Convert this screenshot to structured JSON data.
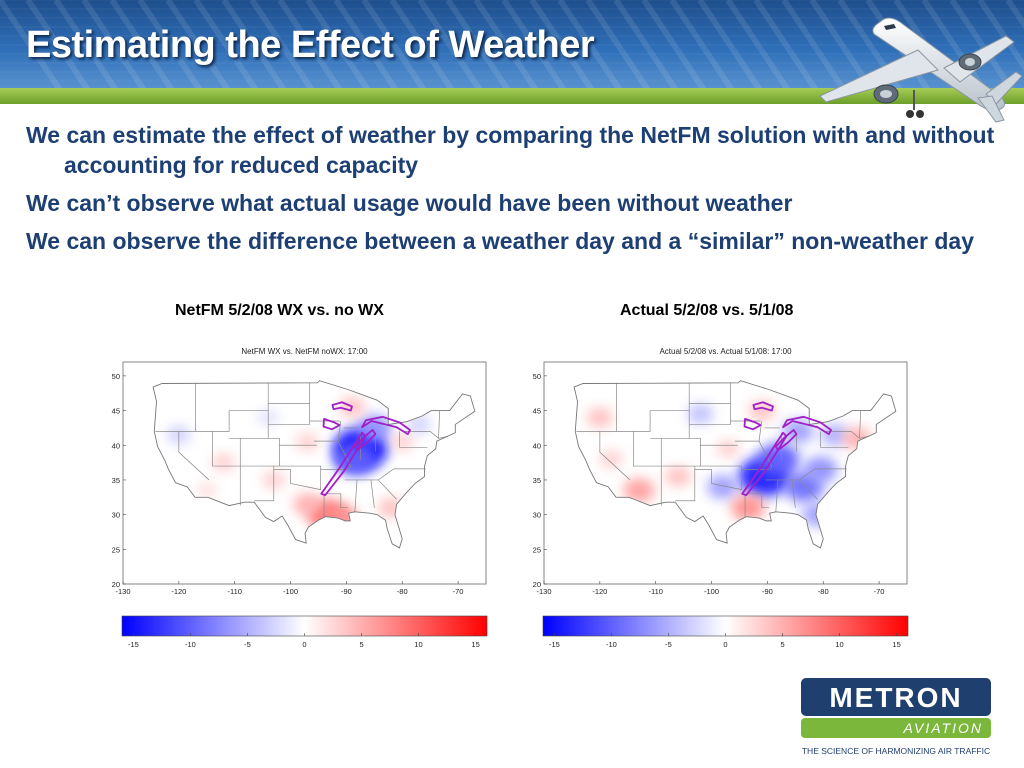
{
  "slide": {
    "title": "Estimating the Effect of Weather",
    "bullets": [
      "We can estimate the effect of weather by comparing the NetFM solution with and without accounting for reduced capacity",
      "We can’t observe what actual usage would have been without weather",
      "We can observe the difference between a weather day and a “similar” non-weather day"
    ]
  },
  "panels": [
    {
      "heading": "NetFM 5/2/08 WX vs. no WX",
      "plot_title": "NetFM WX vs. NetFM noWX: 17:00"
    },
    {
      "heading": "Actual 5/2/08 vs. 5/1/08",
      "plot_title": "Actual 5/2/08 vs. Actual 5/1/08: 17:00"
    }
  ],
  "chart_data": [
    {
      "type": "heatmap",
      "title": "NetFM WX vs. NetFM noWX: 17:00",
      "xlim": [
        -130,
        -65
      ],
      "ylim": [
        20,
        52
      ],
      "x_ticks": [
        "-130",
        "-120",
        "-110",
        "-100",
        "-90",
        "-80",
        "-70"
      ],
      "y_ticks": [
        "20",
        "25",
        "30",
        "35",
        "40",
        "45",
        "50"
      ],
      "colorbar": {
        "range": [
          -16,
          16
        ],
        "ticks": [
          "-15",
          "-10",
          "-5",
          "0",
          "5",
          "10",
          "15"
        ],
        "low_color": "#0000ff",
        "mid_color": "#ffffff",
        "high_color": "#ff0000"
      },
      "blobs": [
        {
          "lon": -87.5,
          "lat": 39.5,
          "value": -15
        },
        {
          "lon": -88.5,
          "lat": 38.0,
          "value": -10
        },
        {
          "lon": -85.0,
          "lat": 42.5,
          "value": -7
        },
        {
          "lon": -93.5,
          "lat": 30.0,
          "value": 9
        },
        {
          "lon": -91.0,
          "lat": 29.5,
          "value": 7
        },
        {
          "lon": -97.0,
          "lat": 31.5,
          "value": 5
        },
        {
          "lon": -82.0,
          "lat": 31.0,
          "value": 4
        },
        {
          "lon": -89.0,
          "lat": 45.5,
          "value": 4
        },
        {
          "lon": -80.0,
          "lat": 40.5,
          "value": 3
        },
        {
          "lon": -112.0,
          "lat": 37.5,
          "value": 3
        },
        {
          "lon": -103.0,
          "lat": 35.0,
          "value": 3
        },
        {
          "lon": -97.0,
          "lat": 40.5,
          "value": 3
        },
        {
          "lon": -120.0,
          "lat": 41.5,
          "value": -3
        },
        {
          "lon": -104.0,
          "lat": 44.0,
          "value": -2
        },
        {
          "lon": -115.0,
          "lat": 33.5,
          "value": 2
        },
        {
          "lon": -77.0,
          "lat": 43.0,
          "value": -3
        }
      ]
    },
    {
      "type": "heatmap",
      "title": "Actual 5/2/08 vs. Actual 5/1/08: 17:00",
      "xlim": [
        -130,
        -65
      ],
      "ylim": [
        20,
        52
      ],
      "x_ticks": [
        "-130",
        "-120",
        "-110",
        "-100",
        "-90",
        "-80",
        "-70"
      ],
      "y_ticks": [
        "20",
        "25",
        "30",
        "35",
        "40",
        "45",
        "50"
      ],
      "colorbar": {
        "range": [
          -16,
          16
        ],
        "ticks": [
          "-15",
          "-10",
          "-5",
          "0",
          "5",
          "10",
          "15"
        ],
        "low_color": "#0000ff",
        "mid_color": "#ffffff",
        "high_color": "#ff0000"
      },
      "blobs": [
        {
          "lon": -90.5,
          "lat": 35.5,
          "value": -14
        },
        {
          "lon": -88.0,
          "lat": 38.0,
          "value": -10
        },
        {
          "lon": -83.5,
          "lat": 34.0,
          "value": -9
        },
        {
          "lon": -80.5,
          "lat": 36.5,
          "value": -7
        },
        {
          "lon": -81.0,
          "lat": 30.0,
          "value": -6
        },
        {
          "lon": -98.0,
          "lat": 34.0,
          "value": -6
        },
        {
          "lon": -84.5,
          "lat": 42.0,
          "value": -6
        },
        {
          "lon": -78.0,
          "lat": 41.5,
          "value": -5
        },
        {
          "lon": -93.5,
          "lat": 31.0,
          "value": 7
        },
        {
          "lon": -113.0,
          "lat": 33.5,
          "value": 6
        },
        {
          "lon": -106.0,
          "lat": 35.5,
          "value": 4
        },
        {
          "lon": -120.0,
          "lat": 44.0,
          "value": 4
        },
        {
          "lon": -91.0,
          "lat": 45.0,
          "value": 4
        },
        {
          "lon": -74.0,
          "lat": 41.0,
          "value": 5
        },
        {
          "lon": -102.0,
          "lat": 44.5,
          "value": -4
        },
        {
          "lon": -118.0,
          "lat": 38.0,
          "value": 3
        },
        {
          "lon": -97.0,
          "lat": 39.5,
          "value": 3
        }
      ]
    }
  ],
  "logo": {
    "brand": "METRON",
    "division": "AVIATION",
    "tagline": "THE SCIENCE OF HARMONIZING AIR TRAFFIC",
    "brand_color": "#1f3f6e",
    "accent_color": "#7ab73a"
  },
  "colors": {
    "header_blue": "#2f6fb8",
    "header_green": "#8dbb42",
    "bullet_text": "#1d3f73"
  }
}
